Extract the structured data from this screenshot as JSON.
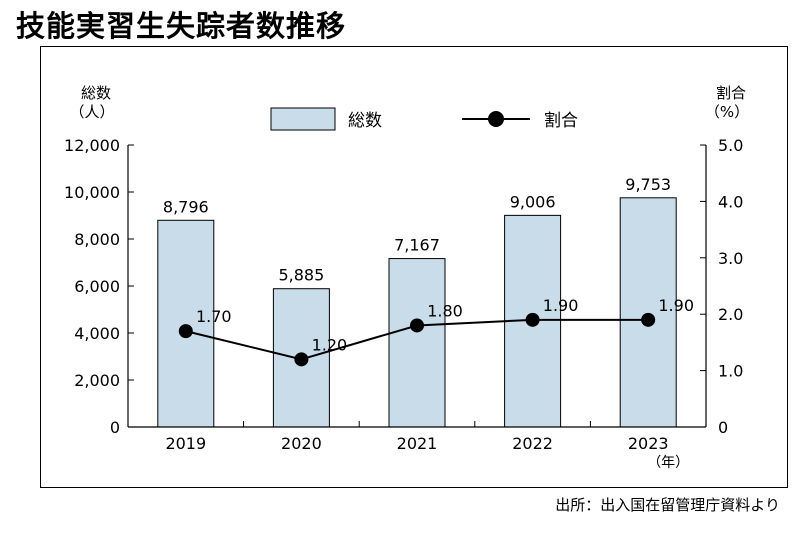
{
  "title": "技能実習生失踪者数推移",
  "source": "出所：出入国在留管理庁資料より",
  "chart_data": {
    "type": "bar",
    "categories": [
      "2019",
      "2020",
      "2021",
      "2022",
      "2023"
    ],
    "x_unit": "（年）",
    "left_axis": {
      "label_line1": "総数",
      "label_line2": "（人）",
      "min": 0,
      "max": 12000,
      "step": 2000,
      "ticks": [
        "0",
        "2,000",
        "4,000",
        "6,000",
        "8,000",
        "10,000",
        "12,000"
      ]
    },
    "right_axis": {
      "label_line1": "割合",
      "label_line2": "（%）",
      "min": 0,
      "max": 5,
      "step": 1,
      "ticks": [
        "0",
        "1.0",
        "2.0",
        "3.0",
        "4.0",
        "5.0"
      ]
    },
    "series": [
      {
        "name": "総数",
        "type": "bar",
        "axis": "left",
        "color": "#c9dcea",
        "values": [
          8796,
          5885,
          7167,
          9006,
          9753
        ],
        "labels": [
          "8,796",
          "5,885",
          "7,167",
          "9,006",
          "9,753"
        ]
      },
      {
        "name": "割合",
        "type": "line",
        "axis": "right",
        "color": "#000000",
        "values": [
          1.7,
          1.2,
          1.8,
          1.9,
          1.9
        ],
        "labels": [
          "1.70",
          "1.20",
          "1.80",
          "1.90",
          "1.90"
        ]
      }
    ],
    "legend": {
      "placement": "top-center"
    },
    "grid": false
  }
}
